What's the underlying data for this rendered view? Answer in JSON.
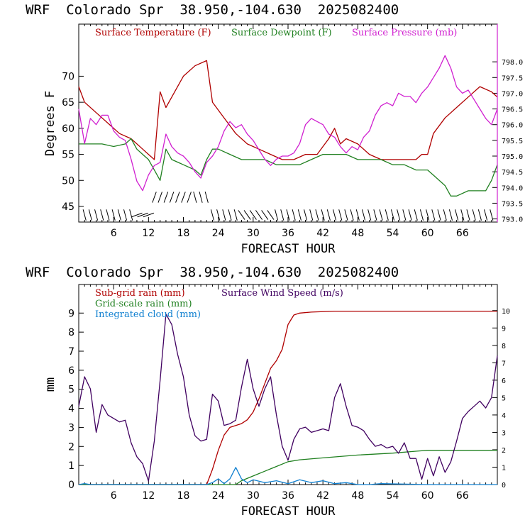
{
  "chart_data": [
    {
      "type": "line",
      "title": "WRF  Colorado Spr  38.950,-104.630  2025082400",
      "xlabel": "FORECAST HOUR",
      "ylabel": "Degrees F",
      "xlim": [
        0,
        72
      ],
      "ylim": [
        42,
        80
      ],
      "y2lim": [
        792.9,
        799.2
      ],
      "xticks": [
        6,
        12,
        18,
        24,
        30,
        36,
        42,
        48,
        54,
        60,
        66
      ],
      "yticks": [
        45,
        50,
        55,
        60,
        65,
        70
      ],
      "y2ticks": [
        "793.0",
        "793.5",
        "794.0",
        "794.5",
        "795.0",
        "795.5",
        "796.0",
        "796.5",
        "797.0",
        "797.5",
        "798.0"
      ],
      "y2tick_values": [
        793.0,
        793.5,
        794.0,
        794.5,
        795.0,
        795.5,
        796.0,
        796.5,
        797.0,
        797.5,
        798.0
      ],
      "series": [
        {
          "name": "Surface Temperature (F)",
          "color": "#b00000",
          "axis": "left",
          "x": [
            0,
            1,
            3,
            5,
            7,
            9,
            11,
            12,
            13,
            14,
            15,
            16,
            18,
            20,
            22,
            23,
            25,
            27,
            29,
            31,
            33,
            35,
            37,
            39,
            41,
            43,
            44,
            45,
            46,
            48,
            50,
            52,
            54,
            56,
            58,
            59,
            60,
            61,
            63,
            65,
            67,
            69,
            71,
            72
          ],
          "y": [
            68,
            65,
            63,
            61,
            59,
            58,
            56,
            55,
            54,
            67,
            64,
            66,
            70,
            72,
            73,
            65,
            62,
            59,
            57,
            56,
            55,
            54,
            54,
            55,
            55,
            58,
            60,
            57,
            58,
            57,
            55,
            54,
            54,
            54,
            54,
            55,
            55,
            59,
            62,
            64,
            66,
            68,
            67,
            66
          ]
        },
        {
          "name": "Surface Dewpoint (F)",
          "color": "#208020",
          "axis": "left",
          "x": [
            0,
            2,
            4,
            6,
            8,
            9,
            10,
            11,
            12,
            13,
            14,
            15,
            16,
            18,
            20,
            21,
            22,
            23,
            24,
            26,
            28,
            30,
            32,
            34,
            36,
            38,
            40,
            42,
            44,
            46,
            48,
            50,
            52,
            54,
            56,
            58,
            60,
            61,
            63,
            64,
            65,
            67,
            69,
            70,
            71,
            72
          ],
          "y": [
            57,
            57,
            57,
            56.5,
            57,
            58,
            56,
            55,
            54,
            52,
            50,
            56,
            54,
            53,
            52,
            51,
            54,
            56,
            56,
            55,
            54,
            54,
            54,
            53,
            53,
            53,
            54,
            55,
            55,
            55,
            54,
            54,
            54,
            53,
            53,
            52,
            52,
            51,
            49,
            47,
            47,
            48,
            48,
            48,
            50,
            53
          ]
        },
        {
          "name": "Surface Pressure (mb)",
          "color": "#d020d0",
          "axis": "right",
          "x": [
            0,
            1,
            2,
            3,
            4,
            5,
            6,
            7,
            8,
            9,
            10,
            11,
            12,
            13,
            14,
            15,
            16,
            17,
            18,
            19,
            20,
            21,
            22,
            23,
            24,
            25,
            26,
            27,
            28,
            29,
            30,
            31,
            32,
            33,
            34,
            35,
            36,
            37,
            38,
            39,
            40,
            41,
            42,
            43,
            44,
            45,
            46,
            47,
            48,
            49,
            50,
            51,
            52,
            53,
            54,
            55,
            56,
            57,
            58,
            59,
            60,
            61,
            62,
            63,
            64,
            65,
            66,
            67,
            68,
            69,
            70,
            71,
            72
          ],
          "y": [
            796.5,
            795.4,
            796.2,
            796.0,
            796.3,
            796.3,
            795.8,
            795.6,
            795.5,
            794.9,
            794.2,
            793.9,
            794.4,
            794.7,
            794.8,
            795.7,
            795.3,
            795.1,
            795.0,
            794.8,
            794.5,
            794.3,
            794.8,
            795.0,
            795.3,
            795.8,
            796.1,
            795.9,
            796.0,
            795.7,
            795.5,
            795.2,
            794.9,
            794.7,
            794.9,
            795.0,
            795.0,
            795.1,
            795.4,
            796.0,
            796.2,
            796.1,
            796.0,
            795.7,
            795.6,
            795.3,
            795.1,
            795.3,
            795.2,
            795.6,
            795.8,
            796.3,
            796.6,
            796.7,
            796.6,
            797.0,
            796.9,
            796.9,
            796.7,
            797.0,
            797.2,
            797.5,
            797.8,
            798.2,
            797.8,
            797.2,
            797.0,
            797.1,
            796.8,
            796.5,
            796.2,
            796.0,
            796.5
          ]
        }
      ],
      "legend": [
        "Surface Temperature (F)",
        "Surface Dewpoint (F)",
        "Surface Pressure (mb)"
      ],
      "wind_barbs": "present along bottom"
    },
    {
      "type": "line",
      "title": "WRF  Colorado Spr  38.950,-104.630  2025082400",
      "xlabel": "FORECAST HOUR",
      "ylabel": "mm",
      "xlim": [
        0,
        72
      ],
      "ylim": [
        0,
        10.5
      ],
      "y2lim": [
        0,
        11.5
      ],
      "xticks": [
        6,
        12,
        18,
        24,
        30,
        36,
        42,
        48,
        54,
        60,
        66
      ],
      "yticks": [
        0,
        1,
        2,
        3,
        4,
        5,
        6,
        7,
        8,
        9
      ],
      "y2ticks": [
        0,
        1,
        2,
        3,
        4,
        5,
        6,
        7,
        8,
        9,
        10
      ],
      "series": [
        {
          "name": "Sub-grid rain (mm)",
          "color": "#b00000",
          "axis": "left",
          "x": [
            0,
            22,
            23,
            24,
            25,
            26,
            27,
            28,
            29,
            30,
            31,
            32,
            33,
            34,
            35,
            36,
            37,
            38,
            40,
            44,
            50,
            60,
            66,
            72
          ],
          "y": [
            0,
            0,
            0.8,
            1.8,
            2.6,
            3.0,
            3.1,
            3.2,
            3.4,
            3.8,
            4.5,
            5.3,
            6.1,
            6.5,
            7.1,
            8.4,
            8.9,
            9.0,
            9.05,
            9.1,
            9.1,
            9.1,
            9.1,
            9.1
          ]
        },
        {
          "name": "Grid-scale rain (mm)",
          "color": "#208020",
          "axis": "left",
          "x": [
            0,
            27,
            28,
            30,
            32,
            34,
            36,
            38,
            42,
            48,
            54,
            58,
            60,
            66,
            72
          ],
          "y": [
            0,
            0,
            0.2,
            0.45,
            0.7,
            0.95,
            1.2,
            1.3,
            1.4,
            1.55,
            1.65,
            1.75,
            1.8,
            1.8,
            1.8
          ]
        },
        {
          "name": "Integrated cloud (mm)",
          "color": "#1080d0",
          "axis": "left",
          "x": [
            0,
            1,
            2,
            10,
            20,
            22,
            23,
            24,
            25,
            26,
            27,
            28,
            29,
            30,
            32,
            34,
            36,
            38,
            40,
            42,
            44,
            46,
            48,
            50,
            52,
            60,
            72
          ],
          "y": [
            0,
            0.05,
            0,
            0,
            0,
            0,
            0.1,
            0.3,
            0.05,
            0.3,
            0.9,
            0.3,
            0.1,
            0.25,
            0.1,
            0.2,
            0.05,
            0.25,
            0.1,
            0.2,
            0.05,
            0.1,
            0,
            0,
            0.05,
            0,
            0
          ]
        },
        {
          "name": "Surface Wind Speed (m/s)",
          "color": "#400060",
          "axis": "right",
          "x": [
            0,
            1,
            2,
            3,
            4,
            5,
            6,
            7,
            8,
            9,
            10,
            11,
            12,
            13,
            14,
            15,
            16,
            17,
            18,
            19,
            20,
            21,
            22,
            23,
            24,
            25,
            26,
            27,
            28,
            29,
            30,
            31,
            32,
            33,
            34,
            35,
            36,
            37,
            38,
            39,
            40,
            41,
            42,
            43,
            44,
            45,
            46,
            47,
            48,
            49,
            50,
            51,
            52,
            53,
            54,
            55,
            56,
            57,
            58,
            59,
            60,
            61,
            62,
            63,
            64,
            65,
            66,
            67,
            68,
            69,
            70,
            71,
            72
          ],
          "y": [
            4.5,
            6.2,
            5.5,
            3.0,
            4.6,
            4.0,
            3.8,
            3.6,
            3.7,
            2.4,
            1.6,
            1.2,
            0.2,
            2.5,
            6.0,
            9.8,
            9.2,
            7.5,
            6.2,
            4.0,
            2.8,
            2.5,
            2.6,
            5.2,
            4.8,
            3.4,
            3.5,
            3.7,
            5.6,
            7.2,
            5.5,
            4.5,
            5.5,
            6.2,
            4.0,
            2.2,
            1.4,
            2.6,
            3.2,
            3.3,
            3.0,
            3.1,
            3.2,
            3.1,
            5.0,
            5.8,
            4.5,
            3.4,
            3.3,
            3.1,
            2.6,
            2.2,
            2.3,
            2.1,
            2.2,
            1.8,
            2.4,
            1.5,
            1.5,
            0.3,
            1.5,
            0.5,
            1.6,
            0.7,
            1.3,
            2.5,
            3.8,
            4.2,
            4.5,
            4.8,
            4.4,
            5.0,
            7.4
          ]
        }
      ],
      "legend": [
        "Sub-grid rain (mm)",
        "Surface Wind Speed (m/s)",
        "Grid-scale rain (mm)",
        "Integrated cloud (mm)"
      ]
    }
  ]
}
